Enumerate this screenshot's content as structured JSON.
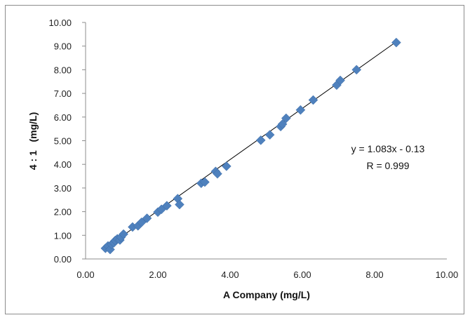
{
  "chart_data": {
    "type": "scatter",
    "title": "",
    "xlabel": "A Company (mg/L)",
    "ylabel": "4 : 1   (mg/L)",
    "xlim": [
      0,
      10
    ],
    "ylim": [
      0,
      10
    ],
    "x_ticks": [
      "0.00",
      "2.00",
      "4.00",
      "6.00",
      "8.00",
      "10.00"
    ],
    "y_ticks": [
      "0.00",
      "1.00",
      "2.00",
      "3.00",
      "4.00",
      "5.00",
      "6.00",
      "7.00",
      "8.00",
      "9.00",
      "10.00"
    ],
    "grid": false,
    "marker_color": "#4F81BD",
    "trendline": {
      "slope": 1.083,
      "intercept": -0.13,
      "color": "#000000"
    },
    "annotation": {
      "equation": "y = 1.083x - 0.13",
      "r": "R = 0.999"
    },
    "points": [
      [
        0.55,
        0.45
      ],
      [
        0.62,
        0.55
      ],
      [
        0.68,
        0.4
      ],
      [
        0.72,
        0.62
      ],
      [
        0.78,
        0.68
      ],
      [
        0.82,
        0.78
      ],
      [
        0.88,
        0.85
      ],
      [
        0.95,
        0.8
      ],
      [
        0.98,
        0.92
      ],
      [
        1.05,
        1.05
      ],
      [
        1.3,
        1.35
      ],
      [
        1.45,
        1.4
      ],
      [
        1.55,
        1.55
      ],
      [
        1.7,
        1.72
      ],
      [
        2.0,
        1.98
      ],
      [
        2.1,
        2.1
      ],
      [
        2.25,
        2.25
      ],
      [
        2.55,
        2.55
      ],
      [
        2.6,
        2.3
      ],
      [
        3.2,
        3.2
      ],
      [
        3.3,
        3.25
      ],
      [
        3.6,
        3.7
      ],
      [
        3.65,
        3.6
      ],
      [
        3.9,
        3.92
      ],
      [
        4.85,
        5.02
      ],
      [
        5.1,
        5.25
      ],
      [
        5.4,
        5.6
      ],
      [
        5.45,
        5.7
      ],
      [
        5.55,
        5.95
      ],
      [
        5.95,
        6.3
      ],
      [
        6.3,
        6.72
      ],
      [
        6.95,
        7.35
      ],
      [
        7.05,
        7.55
      ],
      [
        7.5,
        8.0
      ],
      [
        8.6,
        9.15
      ]
    ]
  }
}
